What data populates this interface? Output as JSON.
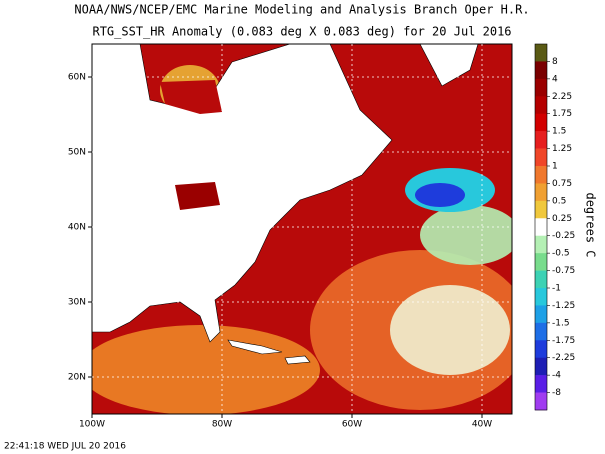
{
  "header": {
    "title": "NOAA/NWS/NCEP/EMC Marine Modeling and Analysis Branch Oper H.R.",
    "subtitle": "RTG_SST_HR Anomaly (0.083 deg X 0.083 deg) for 20 Jul 2016"
  },
  "map": {
    "lon_labels": [
      "100W",
      "80W",
      "60W",
      "40W"
    ],
    "lat_labels": [
      "60N",
      "50N",
      "40N",
      "30N",
      "20N"
    ],
    "grid": true
  },
  "colorbar": {
    "label": "degrees C",
    "ticks": [
      8,
      4,
      2.25,
      1.75,
      1.5,
      1.25,
      1,
      0.75,
      0.5,
      0.25,
      -0.25,
      -0.5,
      -0.75,
      -1,
      -1.25,
      -1.5,
      -1.75,
      -2.25,
      -4,
      -8
    ],
    "colors": [
      "#5a5a14",
      "#7a0000",
      "#9a0000",
      "#b40000",
      "#d20000",
      "#e61e1e",
      "#f04628",
      "#f0782d",
      "#f0a032",
      "#f0c83c",
      "#ffffff",
      "#b4f0b4",
      "#78dc8c",
      "#3cd2b4",
      "#28c8dc",
      "#1ea0e6",
      "#1e6ee6",
      "#1e3cdc",
      "#1e1eb4",
      "#5a1ee6",
      "#a03cf0"
    ]
  },
  "footer": {
    "timestamp": "22:41:18  WED JUL 20 2016"
  }
}
